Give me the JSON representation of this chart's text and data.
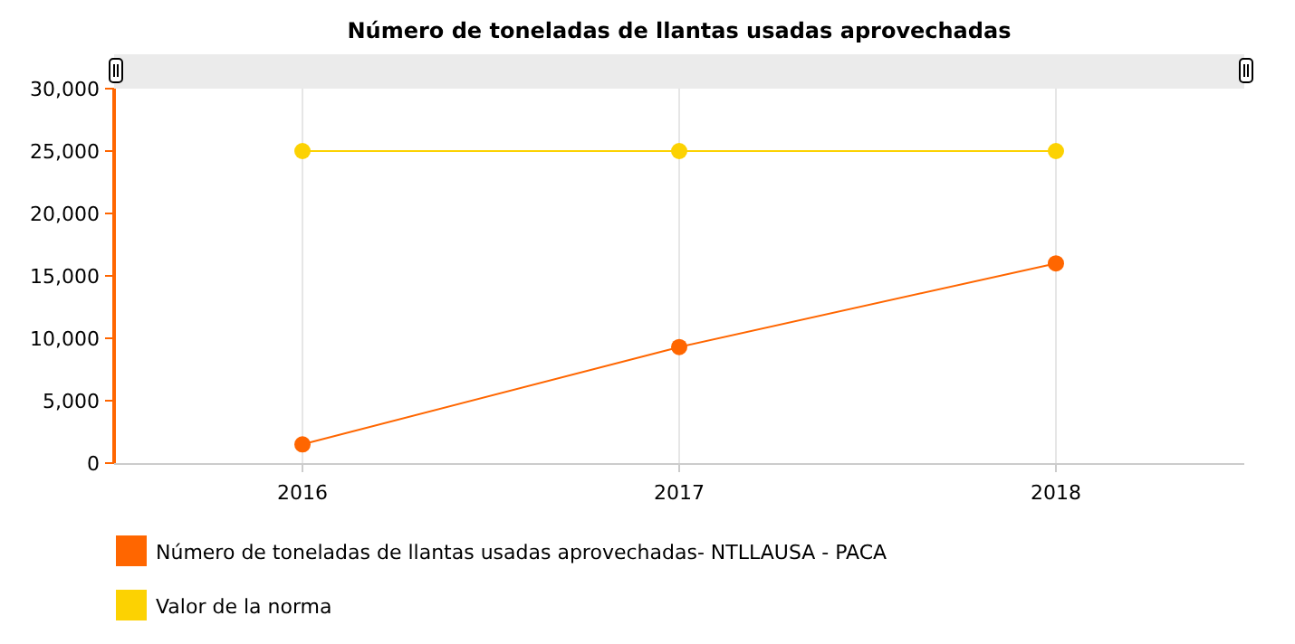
{
  "chart_data": {
    "type": "line",
    "title": "Número de toneladas de llantas usadas aprovechadas",
    "categories": [
      "2016",
      "2017",
      "2018"
    ],
    "series": [
      {
        "name": "Número de toneladas de llantas usadas aprovechadas- NTLLAUSA - PACA",
        "color": "#ff6600",
        "values": [
          1500,
          9300,
          16000
        ]
      },
      {
        "name": "Valor de la norma",
        "color": "#fcd202",
        "values": [
          25000,
          25000,
          25000
        ]
      }
    ],
    "ylim": [
      0,
      30000
    ],
    "yticks": [
      {
        "value": 0,
        "label": "0"
      },
      {
        "value": 5000,
        "label": "5,000"
      },
      {
        "value": 10000,
        "label": "10,000"
      },
      {
        "value": 15000,
        "label": "15,000"
      },
      {
        "value": 20000,
        "label": "20,000"
      },
      {
        "value": 25000,
        "label": "25,000"
      },
      {
        "value": 30000,
        "label": "30,000"
      }
    ],
    "grid": "x",
    "legend": "bottom",
    "marker": "circle",
    "line_style": "solid"
  }
}
